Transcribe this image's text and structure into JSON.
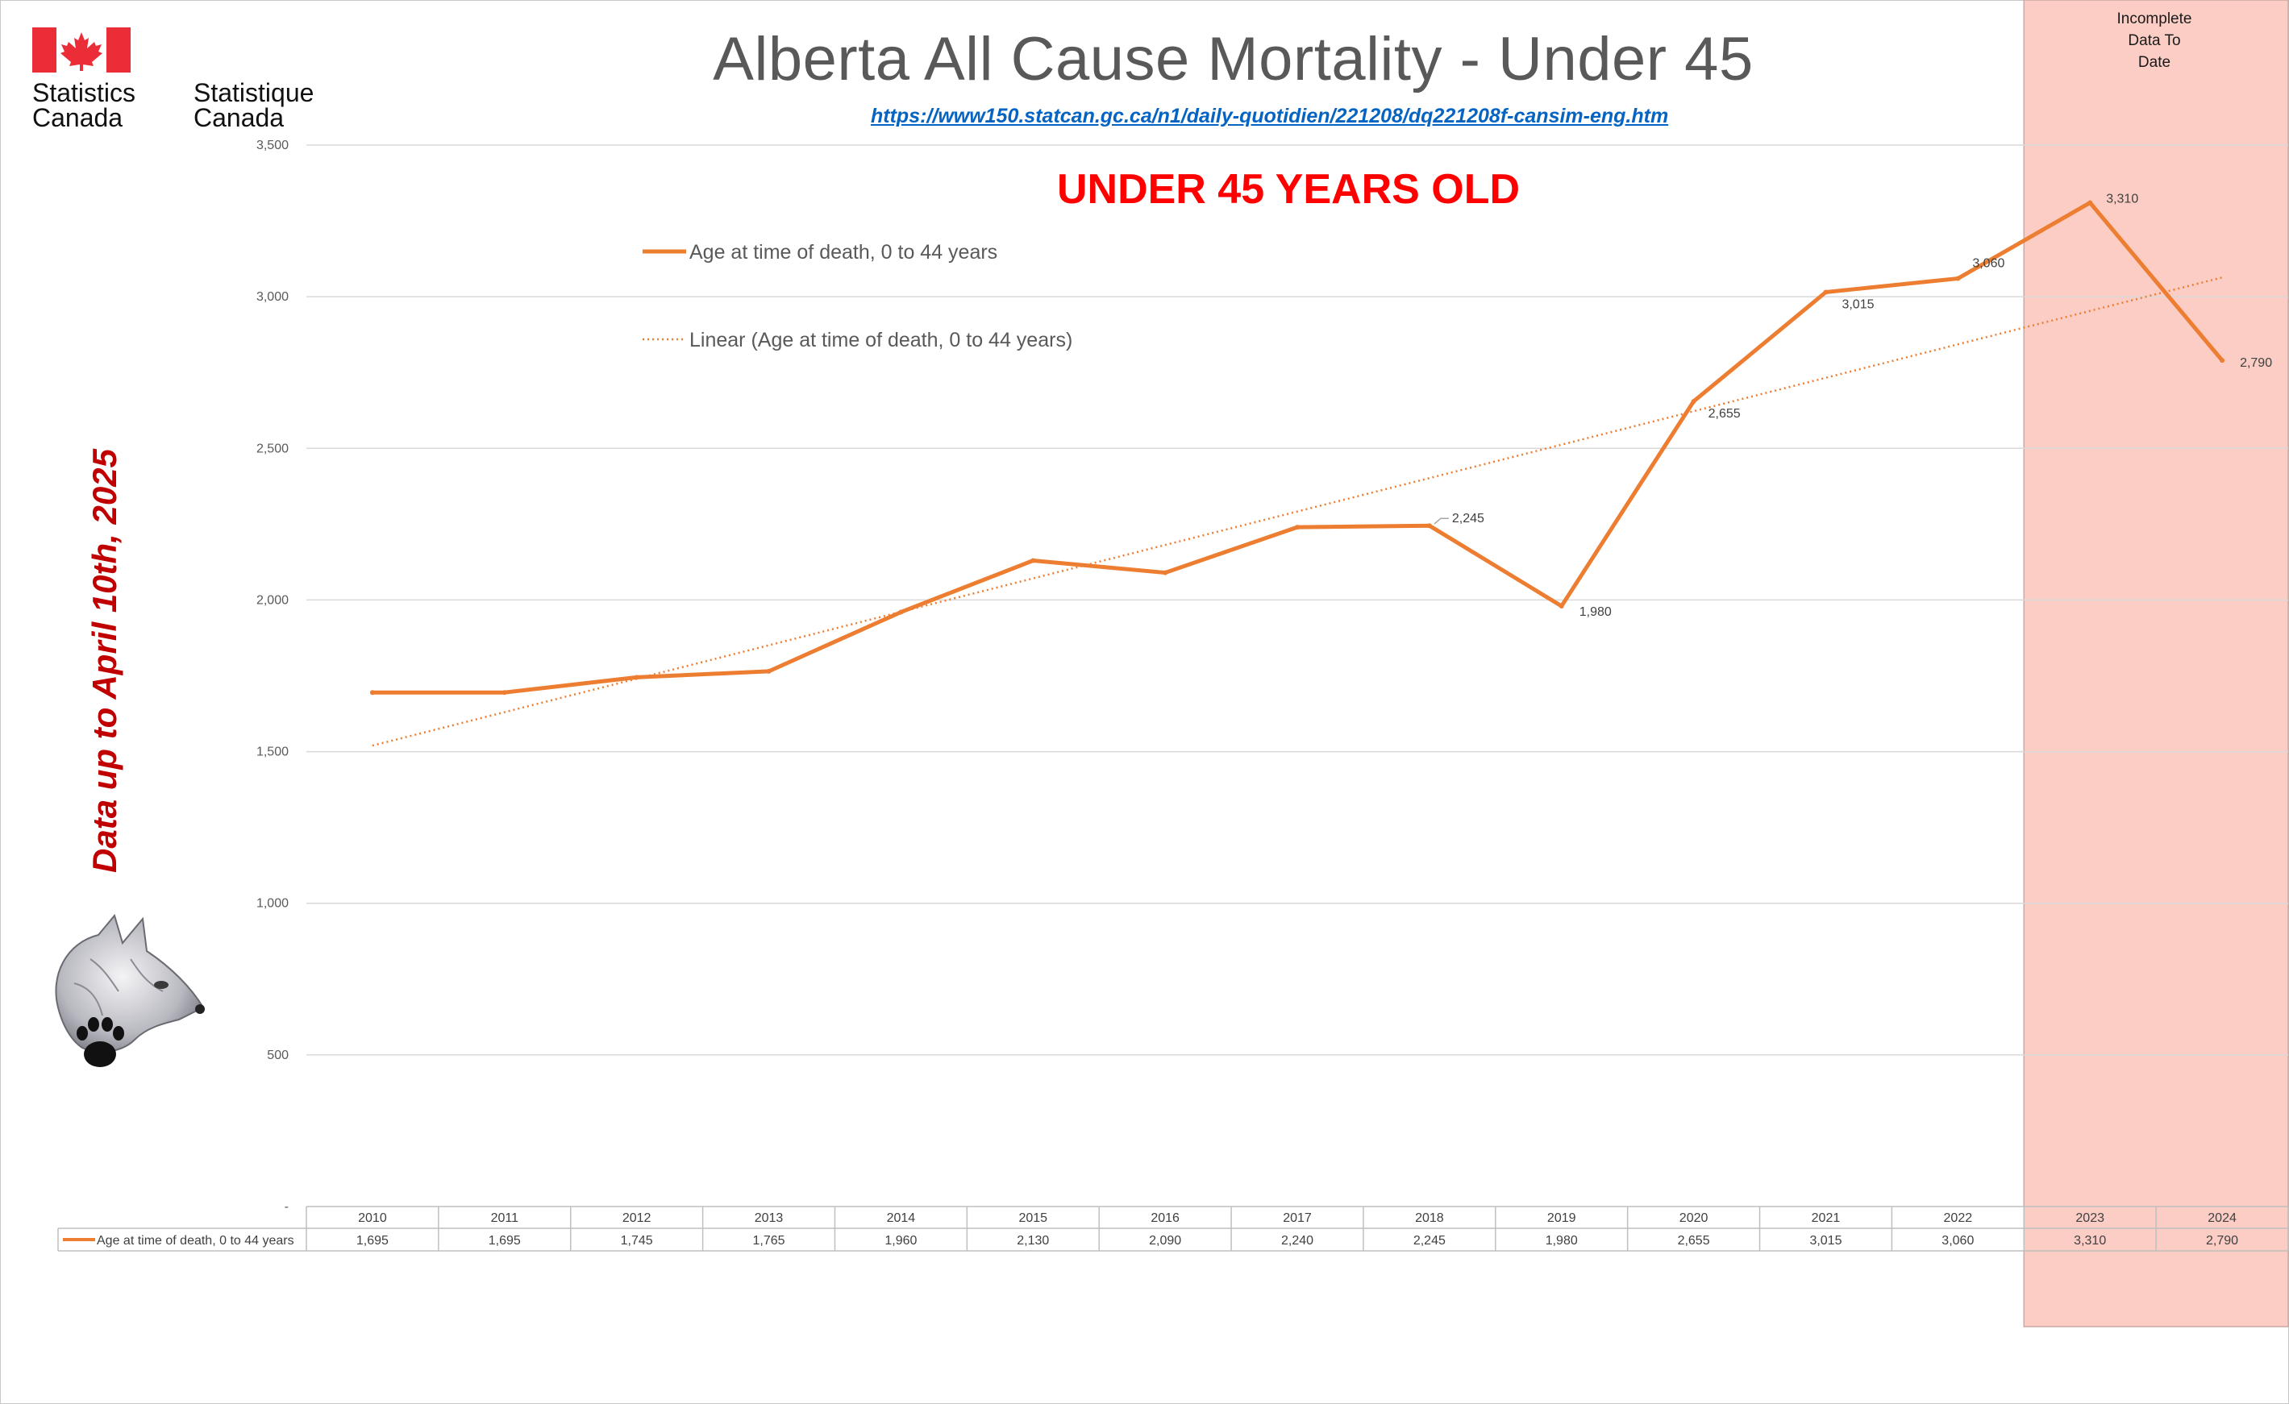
{
  "header": {
    "title": "Alberta All Cause Mortality - Under 45",
    "source_url": "https://www150.statcan.gc.ca/n1/daily-quotidien/221208/dq221208f-cansim-eng.htm",
    "side_note": "Data up to April 10th, 2025"
  },
  "logo": {
    "en_line1": "Statistics",
    "en_line2": "Canada",
    "fr_line1": "Statistique",
    "fr_line2": "Canada",
    "flag_color": "#eb2d37"
  },
  "chart_data": {
    "type": "line",
    "title": "Alberta All Cause Mortality - Under 45",
    "categories": [
      "2010",
      "2011",
      "2012",
      "2013",
      "2014",
      "2015",
      "2016",
      "2017",
      "2018",
      "2019",
      "2020",
      "2021",
      "2022",
      "2023",
      "2024"
    ],
    "series": [
      {
        "name": "Age at time of death, 0 to 44 years",
        "values": [
          1695,
          1695,
          1745,
          1765,
          1960,
          2130,
          2090,
          2240,
          2245,
          1980,
          2655,
          3015,
          3060,
          3310,
          2790
        ],
        "color": "#ed7d31"
      }
    ],
    "trendline": {
      "name": "Linear (Age at time of death, 0 to 44 years)",
      "type": "linear",
      "color": "#ed7d31",
      "style": "dotted"
    },
    "data_labels": {
      "indices": [
        8,
        9,
        10,
        11,
        12,
        13,
        14
      ],
      "text": [
        "2,245",
        "1,980",
        "2,655",
        "3,015",
        "3,060",
        "3,310",
        "2,790"
      ]
    },
    "y_ticks": [
      {
        "value": 0,
        "label": "-"
      },
      {
        "value": 500,
        "label": "500"
      },
      {
        "value": 1000,
        "label": "1,000"
      },
      {
        "value": 1500,
        "label": "1,500"
      },
      {
        "value": 2000,
        "label": "2,000"
      },
      {
        "value": 2500,
        "label": "2,500"
      },
      {
        "value": 3000,
        "label": "3,000"
      },
      {
        "value": 3500,
        "label": "3,500"
      }
    ],
    "ylim": [
      0,
      3500
    ],
    "grid": true,
    "legend_position": "top-left",
    "data_table": {
      "row_label": "Age at time of death, 0 to 44 years",
      "values_text": [
        "1,695",
        "1,695",
        "1,745",
        "1,765",
        "1,960",
        "2,130",
        "2,090",
        "2,240",
        "2,245",
        "1,980",
        "2,655",
        "3,015",
        "3,060",
        "3,310",
        "2,790"
      ]
    },
    "annotations": {
      "big_label": "UNDER 45 YEARS OLD",
      "shaded_region_label": [
        "Incomplete",
        "Data To",
        "Date"
      ],
      "shaded_region_start": "2023",
      "shaded_region_color": "#fbcdc4"
    }
  }
}
